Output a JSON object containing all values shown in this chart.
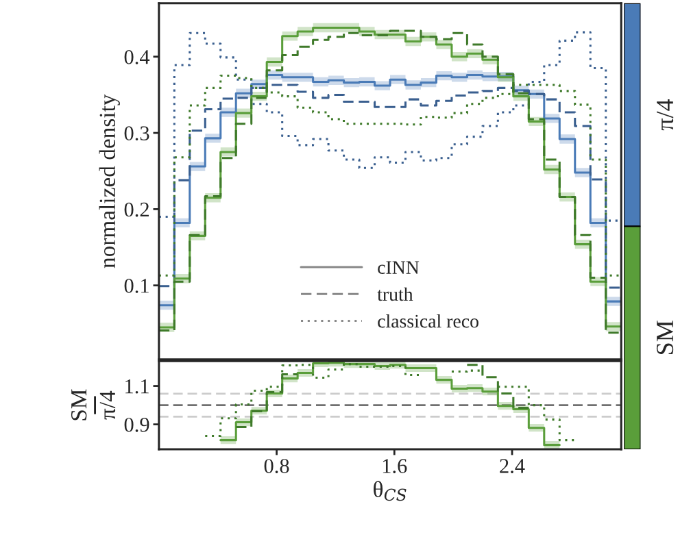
{
  "chart_data": [
    {
      "type": "step",
      "ylabel": "normalized density",
      "x": [
        0,
        0.1047,
        0.2094,
        0.3142,
        0.4189,
        0.5236,
        0.6283,
        0.733,
        0.8378,
        0.9425,
        1.0472,
        1.1519,
        1.2566,
        1.3614,
        1.4661,
        1.5708,
        1.6755,
        1.7802,
        1.885,
        1.9897,
        2.0944,
        2.1991,
        2.3038,
        2.4086,
        2.5133,
        2.618,
        2.7227,
        2.8274,
        2.9322,
        3.0369,
        3.1416
      ],
      "series": [
        {
          "color": "#4a7bb7",
          "line_style": "solid",
          "values": [
            0.074,
            0.182,
            0.256,
            0.293,
            0.327,
            0.352,
            0.364,
            0.376,
            0.373,
            0.373,
            0.367,
            0.369,
            0.366,
            0.367,
            0.362,
            0.37,
            0.363,
            0.366,
            0.375,
            0.373,
            0.376,
            0.374,
            0.374,
            0.356,
            0.351,
            0.319,
            0.292,
            0.248,
            0.182,
            0.079,
            0.079
          ],
          "lower": [
            0.068,
            0.176,
            0.25,
            0.287,
            0.321,
            0.346,
            0.358,
            0.37,
            0.367,
            0.367,
            0.361,
            0.363,
            0.36,
            0.361,
            0.356,
            0.364,
            0.357,
            0.36,
            0.369,
            0.367,
            0.37,
            0.368,
            0.368,
            0.35,
            0.345,
            0.313,
            0.286,
            0.242,
            0.176,
            0.073,
            0.073
          ],
          "upper": [
            0.08,
            0.188,
            0.262,
            0.299,
            0.333,
            0.358,
            0.37,
            0.382,
            0.379,
            0.379,
            0.373,
            0.375,
            0.372,
            0.373,
            0.368,
            0.376,
            0.369,
            0.372,
            0.381,
            0.379,
            0.382,
            0.38,
            0.38,
            0.362,
            0.357,
            0.325,
            0.298,
            0.254,
            0.188,
            0.085,
            0.085
          ]
        },
        {
          "color": "#3a5f8f",
          "line_style": "dashed",
          "values": [
            0.099,
            0.238,
            0.303,
            0.331,
            0.345,
            0.346,
            0.359,
            0.363,
            0.363,
            0.354,
            0.346,
            0.35,
            0.341,
            0.341,
            0.334,
            0.334,
            0.344,
            0.336,
            0.342,
            0.349,
            0.353,
            0.355,
            0.359,
            0.355,
            0.351,
            0.344,
            0.327,
            0.309,
            0.239,
            0.097,
            0.097
          ]
        },
        {
          "color": "#3a5f8f",
          "line_style": "dotted",
          "values": [
            0.19,
            0.389,
            0.431,
            0.417,
            0.399,
            0.37,
            0.338,
            0.327,
            0.296,
            0.284,
            0.292,
            0.277,
            0.265,
            0.254,
            0.268,
            0.261,
            0.275,
            0.264,
            0.267,
            0.285,
            0.295,
            0.309,
            0.327,
            0.336,
            0.367,
            0.389,
            0.421,
            0.432,
            0.385,
            0.185,
            0.185
          ]
        },
        {
          "color": "#5a9e3a",
          "line_style": "solid",
          "values": [
            0.045,
            0.109,
            0.165,
            0.215,
            0.275,
            0.326,
            0.348,
            0.393,
            0.427,
            0.433,
            0.438,
            0.438,
            0.438,
            0.433,
            0.429,
            0.429,
            0.42,
            0.426,
            0.416,
            0.4,
            0.404,
            0.396,
            0.373,
            0.348,
            0.315,
            0.252,
            0.216,
            0.154,
            0.105,
            0.046,
            0.046
          ],
          "lower": [
            0.039,
            0.103,
            0.159,
            0.209,
            0.269,
            0.32,
            0.342,
            0.387,
            0.421,
            0.427,
            0.432,
            0.432,
            0.432,
            0.427,
            0.423,
            0.423,
            0.414,
            0.42,
            0.41,
            0.394,
            0.398,
            0.39,
            0.367,
            0.342,
            0.309,
            0.246,
            0.21,
            0.148,
            0.099,
            0.04,
            0.04
          ],
          "upper": [
            0.051,
            0.115,
            0.171,
            0.221,
            0.281,
            0.332,
            0.354,
            0.399,
            0.433,
            0.439,
            0.444,
            0.444,
            0.444,
            0.439,
            0.435,
            0.435,
            0.426,
            0.432,
            0.422,
            0.406,
            0.41,
            0.402,
            0.379,
            0.354,
            0.321,
            0.258,
            0.222,
            0.16,
            0.111,
            0.052,
            0.052
          ]
        },
        {
          "color": "#3f7a2a",
          "line_style": "dashed",
          "values": [
            0.041,
            0.105,
            0.166,
            0.217,
            0.267,
            0.312,
            0.346,
            0.382,
            0.402,
            0.413,
            0.422,
            0.426,
            0.431,
            0.428,
            0.428,
            0.434,
            0.434,
            0.426,
            0.423,
            0.431,
            0.416,
            0.4,
            0.377,
            0.352,
            0.318,
            0.265,
            0.216,
            0.166,
            0.11,
            0.038,
            0.038
          ]
        },
        {
          "color": "#3f7a2a",
          "line_style": "dotted",
          "values": [
            0.113,
            0.268,
            0.336,
            0.359,
            0.375,
            0.372,
            0.359,
            0.353,
            0.348,
            0.333,
            0.327,
            0.318,
            0.312,
            0.312,
            0.312,
            0.312,
            0.311,
            0.321,
            0.32,
            0.326,
            0.338,
            0.346,
            0.351,
            0.363,
            0.363,
            0.363,
            0.355,
            0.337,
            0.265,
            0.113,
            0.113
          ]
        }
      ],
      "xlim": [
        0,
        3.1416
      ],
      "ylim": [
        0.003,
        0.47
      ],
      "xticks": [
        0.8,
        1.6,
        2.4
      ],
      "yticks": [
        0.1,
        0.2,
        0.3,
        0.4
      ],
      "tick_labels": "y",
      "grid": false,
      "annotations": [
        "π/4",
        "SM",
        "cINN",
        "truth",
        "classical reco"
      ]
    },
    {
      "type": "step",
      "xlabel": "θ$_{CS}$",
      "ylabel": "SM\nπ/4",
      "series": [
        {
          "color": "#5a9e3a",
          "line_style": "solid",
          "x": [
            0.4189,
            0.5236,
            0.6283,
            0.733,
            0.8378,
            0.9425,
            1.0472,
            1.1519,
            1.2566,
            1.3614,
            1.4661,
            1.5708,
            1.6755,
            1.7802,
            1.885,
            1.9897,
            2.0944,
            2.1991,
            2.3038,
            2.4086,
            2.5133,
            2.618,
            2.7227
          ],
          "values": [
            0.818,
            0.911,
            0.971,
            1.061,
            1.139,
            1.168,
            1.218,
            1.221,
            1.214,
            1.214,
            1.204,
            1.21,
            1.193,
            1.193,
            1.132,
            1.086,
            1.089,
            1.071,
            0.996,
            0.979,
            0.882,
            0.793,
            0.793
          ],
          "lower": [
            0.798,
            0.891,
            0.951,
            1.041,
            1.119,
            1.148,
            1.198,
            1.201,
            1.194,
            1.194,
            1.184,
            1.19,
            1.173,
            1.173,
            1.112,
            1.066,
            1.069,
            1.051,
            0.976,
            0.959,
            0.862,
            0.773,
            0.773
          ],
          "upper": [
            0.838,
            0.931,
            0.991,
            1.081,
            1.159,
            1.188,
            1.23,
            1.23,
            1.23,
            1.23,
            1.224,
            1.23,
            1.213,
            1.213,
            1.152,
            1.106,
            1.109,
            1.091,
            1.016,
            0.999,
            0.902,
            0.813,
            0.813
          ]
        },
        {
          "color": "#3f7a2a",
          "line_style": "dashed",
          "x": [
            0.5236,
            0.6283,
            0.733,
            0.8378,
            0.9425
          ],
          "values": [
            0.886,
            0.968,
            1.068,
            1.161,
            1.161
          ]
        },
        {
          "color": "#3f7a2a",
          "line_style": "dashed",
          "x": [
            2.0944,
            2.1991,
            2.3038,
            2.4086,
            2.5133
          ],
          "values": [
            1.21,
            1.146,
            1.061,
            0.986,
            0.986
          ]
        },
        {
          "color": "#3f7a2a",
          "line_style": "dotted",
          "x": [
            0.3142,
            0.4189,
            0.5236,
            0.6283,
            0.733,
            0.8378,
            0.9425,
            1.0472,
            1.1519,
            1.2566,
            1.3614,
            1.4661,
            1.5708,
            1.6755,
            1.7802
          ],
          "values": [
            0.84,
            0.932,
            1.004,
            1.075,
            1.096,
            1.207,
            1.21,
            1.143,
            1.186,
            1.214,
            1.2,
            1.2,
            1.204,
            1.157,
            1.157
          ]
        },
        {
          "color": "#3f7a2a",
          "line_style": "dotted",
          "x": [
            1.9897,
            2.0944,
            2.1991
          ],
          "values": [
            1.175,
            1.18,
            1.18
          ]
        },
        {
          "color": "#3f7a2a",
          "line_style": "dotted",
          "x": [
            2.3038,
            2.4086,
            2.5133,
            2.618,
            2.7227,
            2.8274
          ],
          "values": [
            1.096,
            1.096,
            1.0,
            0.925,
            0.818,
            0.818
          ]
        }
      ],
      "ref_lines": [
        {
          "axis": "y",
          "value": 1.0,
          "color": "#707070",
          "line_style": "dashed"
        },
        {
          "axis": "y",
          "value": 1.06,
          "color": "#cccccc",
          "line_style": "dashed"
        },
        {
          "axis": "y",
          "value": 0.94,
          "color": "#cccccc",
          "line_style": "dashed"
        }
      ],
      "xlim": [
        0,
        3.1416
      ],
      "ylim": [
        0.77,
        1.23
      ],
      "xticks": [
        0.8,
        1.6,
        2.4
      ],
      "yticks": [
        0.9,
        1.1
      ],
      "grid": false
    }
  ]
}
